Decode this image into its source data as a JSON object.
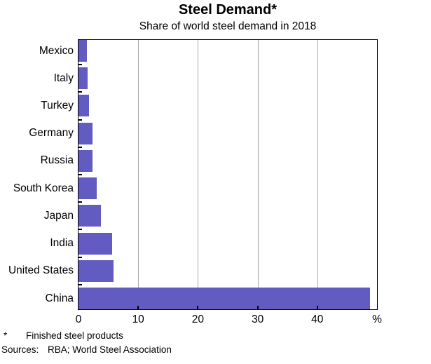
{
  "header": {
    "title": "Steel Demand*",
    "subtitle": "Share of world steel demand in 2018"
  },
  "chart_data": {
    "type": "bar",
    "orientation": "horizontal",
    "title": "Steel Demand*",
    "subtitle": "Share of world steel demand in 2018",
    "categories": [
      "Mexico",
      "Italy",
      "Turkey",
      "Germany",
      "Russia",
      "South Korea",
      "Japan",
      "India",
      "United States",
      "China"
    ],
    "values": [
      1.4,
      1.5,
      1.8,
      2.4,
      2.4,
      3.1,
      3.7,
      5.6,
      5.9,
      48.8
    ],
    "xlabel": "%",
    "xlim": [
      0,
      50
    ],
    "xticks": [
      0,
      10,
      20,
      30,
      40
    ],
    "grid": "vertical-at-xticks",
    "legend": "none",
    "bar_color": "#615BC2",
    "gridline_color": "#A9A9A9",
    "frame_color": "#000000"
  },
  "footnotes": {
    "asterisk": "*",
    "note": "Finished steel products",
    "sources_label": "Sources:",
    "sources": "RBA; World Steel Association"
  }
}
